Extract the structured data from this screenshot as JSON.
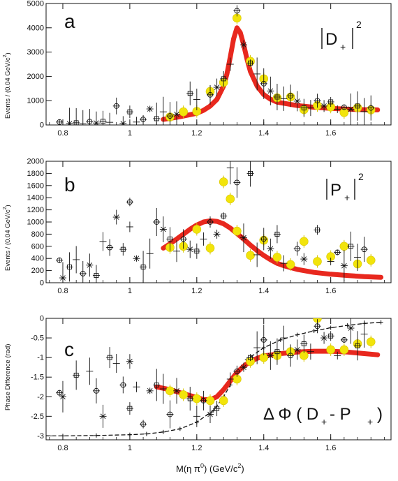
{
  "chart_data": [
    {
      "type": "scatter",
      "panel_label": "a",
      "annotation": {
        "text": "D",
        "subscript": "+",
        "superscript": "2"
      },
      "ylabel": "Events / (0.04 GeV/c",
      "ylabel_sup": "2",
      "ylabel_close": ")",
      "xlim": [
        0.75,
        1.78
      ],
      "ylim": [
        0,
        5000
      ],
      "x_ticks": [
        0.8,
        1,
        1.2,
        1.4,
        1.6
      ],
      "x_tick_labels": [
        "0.8",
        "1",
        "1.2",
        "1.4",
        "1.6"
      ],
      "y_ticks": [
        0,
        1000,
        2000,
        3000,
        4000,
        5000
      ],
      "y_tick_labels": [
        "0",
        "1000",
        "2000",
        "3000",
        "4000",
        "5000"
      ],
      "series": [
        {
          "style": "fit-curve",
          "color": "#e8281e",
          "x": [
            1.1,
            1.15,
            1.2,
            1.22,
            1.24,
            1.26,
            1.28,
            1.29,
            1.3,
            1.31,
            1.32,
            1.33,
            1.34,
            1.35,
            1.36,
            1.38,
            1.4,
            1.42,
            1.44,
            1.5,
            1.55,
            1.6,
            1.65,
            1.7,
            1.74
          ],
          "y": [
            230,
            340,
            480,
            600,
            780,
            1050,
            1600,
            2100,
            2800,
            3550,
            4000,
            3800,
            3300,
            2700,
            2200,
            1600,
            1250,
            1060,
            940,
            800,
            730,
            680,
            650,
            630,
            620
          ]
        },
        {
          "style": "fit-points",
          "color": "#f2e40a",
          "x": [
            1.12,
            1.16,
            1.2,
            1.24,
            1.28,
            1.32,
            1.36,
            1.4,
            1.44,
            1.48,
            1.52,
            1.56,
            1.6,
            1.64,
            1.68,
            1.72
          ],
          "y": [
            330,
            540,
            560,
            1380,
            1750,
            4400,
            2620,
            1900,
            1120,
            1150,
            630,
            800,
            740,
            510,
            710,
            620
          ]
        },
        {
          "style": "data-points",
          "color": "#111111",
          "x": [
            0.79,
            0.82,
            0.84,
            0.86,
            0.88,
            0.9,
            0.92,
            0.94,
            0.96,
            0.98,
            1.0,
            1.02,
            1.04,
            1.06,
            1.08,
            1.1,
            1.12,
            1.14,
            1.18,
            1.2,
            1.24,
            1.26,
            1.28,
            1.3,
            1.32,
            1.34,
            1.36,
            1.38,
            1.4,
            1.42,
            1.44,
            1.46,
            1.48,
            1.5,
            1.52,
            1.54,
            1.56,
            1.58,
            1.6,
            1.62,
            1.64,
            1.66,
            1.68,
            1.7,
            1.72
          ],
          "y": [
            120,
            60,
            90,
            50,
            140,
            80,
            150,
            110,
            780,
            60,
            540,
            120,
            230,
            660,
            260,
            540,
            370,
            440,
            1300,
            1050,
            1240,
            1550,
            1900,
            2500,
            4700,
            3300,
            2550,
            2100,
            1700,
            1400,
            1150,
            1080,
            1200,
            980,
            700,
            700,
            1000,
            780,
            950,
            650,
            730,
            650,
            780,
            550,
            700
          ]
        }
      ]
    },
    {
      "type": "scatter",
      "panel_label": "b",
      "annotation": {
        "text": "P",
        "subscript": "+",
        "superscript": "2"
      },
      "ylabel": "Events / (0.04 GeV/c",
      "ylabel_sup": "2",
      "ylabel_close": ")",
      "xlim": [
        0.75,
        1.78
      ],
      "ylim": [
        0,
        2000
      ],
      "x_ticks": [
        0.8,
        1,
        1.2,
        1.4,
        1.6
      ],
      "x_tick_labels": [
        "0.8",
        "1",
        "1.2",
        "1.4",
        "1.6"
      ],
      "y_ticks": [
        0,
        200,
        400,
        600,
        800,
        1000,
        1200,
        1400,
        1600,
        1800,
        2000
      ],
      "y_tick_labels": [
        "0",
        "200",
        "400",
        "600",
        "800",
        "1000",
        "1200",
        "1400",
        "1600",
        "1800",
        "2000"
      ],
      "series": [
        {
          "style": "fit-curve",
          "color": "#e8281e",
          "x": [
            1.1,
            1.12,
            1.14,
            1.16,
            1.18,
            1.2,
            1.22,
            1.24,
            1.26,
            1.28,
            1.3,
            1.32,
            1.34,
            1.36,
            1.38,
            1.4,
            1.42,
            1.44,
            1.46,
            1.5,
            1.55,
            1.6,
            1.65,
            1.7,
            1.75
          ],
          "y": [
            570,
            640,
            720,
            800,
            880,
            950,
            1000,
            1020,
            1010,
            970,
            900,
            810,
            720,
            620,
            530,
            450,
            380,
            320,
            280,
            220,
            170,
            140,
            120,
            100,
            90
          ]
        },
        {
          "style": "fit-points",
          "color": "#f2e40a",
          "x": [
            1.12,
            1.16,
            1.2,
            1.24,
            1.28,
            1.3,
            1.32,
            1.36,
            1.4,
            1.44,
            1.48,
            1.52,
            1.56,
            1.6,
            1.64,
            1.68,
            1.72
          ],
          "y": [
            580,
            600,
            880,
            570,
            1660,
            1380,
            850,
            450,
            700,
            420,
            300,
            680,
            350,
            430,
            600,
            310,
            370
          ]
        },
        {
          "style": "data-points",
          "color": "#111111",
          "x": [
            0.79,
            0.8,
            0.82,
            0.84,
            0.86,
            0.88,
            0.9,
            0.92,
            0.94,
            0.96,
            0.98,
            1.0,
            1.0,
            1.02,
            1.04,
            1.06,
            1.08,
            1.1,
            1.12,
            1.14,
            1.16,
            1.18,
            1.2,
            1.22,
            1.24,
            1.26,
            1.28,
            1.3,
            1.32,
            1.34,
            1.36,
            1.38,
            1.4,
            1.42,
            1.44,
            1.46,
            1.5,
            1.52,
            1.56,
            1.6,
            1.62,
            1.64,
            1.66,
            1.68,
            1.7
          ],
          "y": [
            370,
            80,
            260,
            380,
            150,
            290,
            120,
            680,
            580,
            1080,
            550,
            920,
            1330,
            400,
            260,
            480,
            1000,
            880,
            720,
            520,
            720,
            550,
            520,
            720,
            1000,
            800,
            1100,
            1890,
            1650,
            740,
            1800,
            460,
            720,
            560,
            800,
            320,
            560,
            390,
            870,
            350,
            500,
            280,
            600,
            420,
            550
          ]
        }
      ]
    },
    {
      "type": "scatter",
      "panel_label": "c",
      "annotation": {
        "text": "Δ Φ ( D",
        "subscript1": "+",
        "middle": " - P",
        "subscript2": "+",
        "close": ")"
      },
      "ylabel": "Phase Difference (rad)",
      "xlabel": "M(η π",
      "xlabel_sup": "0",
      "xlabel_mid": ") (GeV/c",
      "xlabel_sup2": "2",
      "xlabel_close": ")",
      "xlim": [
        0.75,
        1.78
      ],
      "ylim": [
        -3.1,
        0
      ],
      "x_ticks": [
        0.8,
        1,
        1.2,
        1.4,
        1.6
      ],
      "x_tick_labels": [
        "0.8",
        "1",
        "1.2",
        "1.4",
        "1.6"
      ],
      "y_ticks": [
        -3,
        -2.5,
        -2,
        -1.5,
        -1,
        -0.5,
        0
      ],
      "y_tick_labels": [
        "-3",
        "-2.5",
        "-2",
        "-1.5",
        "-1",
        "-0.5",
        "0"
      ],
      "series": [
        {
          "style": "dashed-curve",
          "color": "#111111",
          "x": [
            0.75,
            0.8,
            0.9,
            1.0,
            1.05,
            1.1,
            1.15,
            1.2,
            1.25,
            1.28,
            1.3,
            1.32,
            1.35,
            1.4,
            1.45,
            1.5,
            1.55,
            1.6,
            1.65,
            1.7,
            1.75
          ],
          "y": [
            -3.0,
            -3.0,
            -2.99,
            -2.97,
            -2.95,
            -2.9,
            -2.82,
            -2.65,
            -2.35,
            -2.0,
            -1.7,
            -1.4,
            -1.05,
            -0.75,
            -0.55,
            -0.42,
            -0.32,
            -0.24,
            -0.18,
            -0.13,
            -0.1
          ]
        },
        {
          "style": "fit-curve",
          "color": "#e8281e",
          "x": [
            1.08,
            1.12,
            1.16,
            1.2,
            1.22,
            1.24,
            1.26,
            1.28,
            1.3,
            1.32,
            1.34,
            1.36,
            1.38,
            1.4,
            1.45,
            1.5,
            1.55,
            1.6,
            1.65,
            1.7,
            1.74
          ],
          "y": [
            -1.75,
            -1.82,
            -1.92,
            -2.02,
            -2.07,
            -2.08,
            -2.0,
            -1.82,
            -1.6,
            -1.38,
            -1.22,
            -1.1,
            -1.02,
            -0.96,
            -0.9,
            -0.86,
            -0.84,
            -0.84,
            -0.86,
            -0.9,
            -0.93
          ]
        },
        {
          "style": "fit-points",
          "color": "#f2e40a",
          "x": [
            1.12,
            1.16,
            1.2,
            1.24,
            1.28,
            1.32,
            1.36,
            1.4,
            1.44,
            1.48,
            1.52,
            1.56,
            1.6,
            1.64,
            1.68,
            1.72
          ],
          "y": [
            -1.85,
            -1.95,
            -2.05,
            -2.1,
            -2.1,
            -1.55,
            -1.1,
            -1.0,
            -0.95,
            -0.85,
            -0.95,
            0.0,
            -0.8,
            -0.8,
            -0.65,
            -0.6
          ]
        },
        {
          "style": "data-points",
          "color": "#111111",
          "x": [
            0.79,
            0.8,
            0.84,
            0.88,
            0.9,
            0.92,
            0.94,
            0.96,
            0.98,
            1.0,
            1.0,
            1.02,
            1.04,
            1.06,
            1.08,
            1.1,
            1.12,
            1.14,
            1.18,
            1.2,
            1.22,
            1.24,
            1.26,
            1.3,
            1.32,
            1.34,
            1.36,
            1.38,
            1.4,
            1.42,
            1.44,
            1.46,
            1.48,
            1.5,
            1.52,
            1.54,
            1.56,
            1.58,
            1.6,
            1.62,
            1.64,
            1.66,
            1.68,
            1.7
          ],
          "y": [
            -1.9,
            -2.0,
            -1.45,
            -1.35,
            -1.85,
            -2.5,
            -1.0,
            -1.15,
            -1.7,
            -1.1,
            -2.3,
            -1.75,
            -2.7,
            -1.85,
            -1.7,
            -1.8,
            -2.45,
            -1.85,
            -2.05,
            -2.5,
            -2.1,
            -2.45,
            -2.3,
            -1.55,
            -1.35,
            -1.25,
            -1.0,
            -0.75,
            -0.55,
            -0.95,
            -0.85,
            -0.5,
            -0.95,
            -0.8,
            -0.65,
            -0.85,
            -0.2,
            -0.5,
            -0.45,
            -0.95,
            -0.55,
            -0.25,
            -0.7,
            -0.4
          ]
        }
      ]
    }
  ]
}
